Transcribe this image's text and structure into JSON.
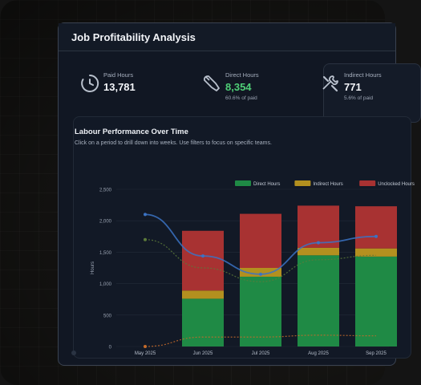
{
  "window": {
    "title": "Job Profitability Analysis"
  },
  "kpis": [
    {
      "label": "Paid Hours",
      "value": "13,781",
      "sub": "",
      "icon": "clock-icon"
    },
    {
      "label": "Direct Hours",
      "value": "8,354",
      "sub": "60.6% of paid",
      "icon": "wrench-icon",
      "accent": "#4fcf77"
    },
    {
      "label": "Indirect Hours",
      "value": "771",
      "sub": "5.6% of paid",
      "icon": "tools-icon"
    }
  ],
  "chart_section": {
    "title": "Labour Performance Over Time",
    "subtitle": "Click on a period to drill down into weeks. Use filters to focus on specific teams."
  },
  "chart_data": {
    "type": "bar",
    "stacked": true,
    "categories": [
      "May 2025",
      "Jun 2025",
      "Jul 2025",
      "Aug 2025",
      "Sep 2025"
    ],
    "series": [
      {
        "name": "Direct Hours",
        "color": "#1f8a45",
        "values": [
          0,
          760,
          1110,
          1450,
          1430
        ]
      },
      {
        "name": "Indirect Hours",
        "color": "#b3901f",
        "values": [
          0,
          130,
          140,
          120,
          130
        ]
      },
      {
        "name": "Unclocked Hours",
        "color": "#a83232",
        "values": [
          0,
          950,
          860,
          670,
          670
        ]
      }
    ],
    "lines": [
      {
        "style": "solid",
        "color": "#3b73c4",
        "values": [
          2100,
          1440,
          1150,
          1650,
          1750
        ]
      },
      {
        "style": "dashed",
        "color": "#5c7a3a",
        "values": [
          1700,
          1250,
          1030,
          1380,
          1450
        ]
      },
      {
        "style": "dashed",
        "color": "#c46a2a",
        "values": [
          0,
          150,
          150,
          180,
          170
        ]
      }
    ],
    "ylabel": "Hours",
    "ylim": [
      0,
      2500
    ],
    "yticks": [
      "0",
      "500",
      "1,000",
      "1,500",
      "2,000",
      "2,500"
    ],
    "legend_position": "top-right",
    "grid": true
  }
}
